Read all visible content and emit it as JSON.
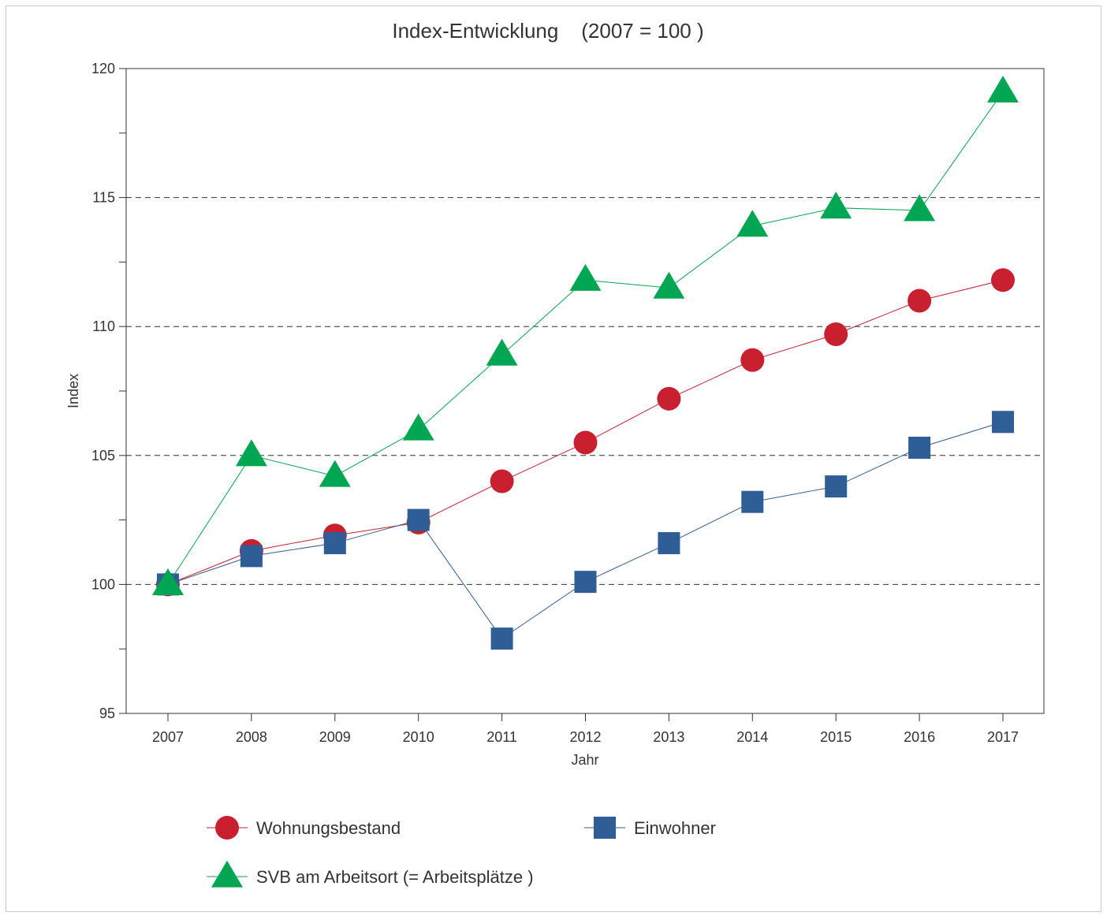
{
  "chart_data": {
    "type": "line",
    "title": "Index-Entwicklung    (2007 = 100 )",
    "xlabel": "Jahr",
    "ylabel": "Index",
    "categories": [
      "2007",
      "2008",
      "2009",
      "2010",
      "2011",
      "2012",
      "2013",
      "2014",
      "2015",
      "2016",
      "2017"
    ],
    "ylim": [
      95,
      120
    ],
    "yticks": [
      "95",
      "100",
      "105",
      "110",
      "115",
      "120"
    ],
    "grid_y_dashed": [
      100,
      105,
      110,
      115
    ],
    "series": [
      {
        "name": "Wohnungsbestand",
        "marker": "circle",
        "color": "#c8202f",
        "values": [
          100,
          101.3,
          101.9,
          102.4,
          104.0,
          105.5,
          107.2,
          108.7,
          109.7,
          111.0,
          111.8
        ]
      },
      {
        "name": "Einwohner",
        "marker": "square",
        "color": "#2f5e97",
        "values": [
          100,
          101.1,
          101.6,
          102.5,
          97.9,
          100.1,
          101.6,
          103.2,
          103.8,
          105.3,
          106.3
        ]
      },
      {
        "name": "SVB am Arbeitsort    (= Arbeitsplätze )",
        "marker": "triangle",
        "color": "#00a651",
        "values": [
          100,
          105.0,
          104.2,
          106.0,
          108.9,
          111.8,
          111.5,
          113.9,
          114.6,
          114.5,
          119.1
        ]
      }
    ],
    "legend_position": "bottom"
  }
}
